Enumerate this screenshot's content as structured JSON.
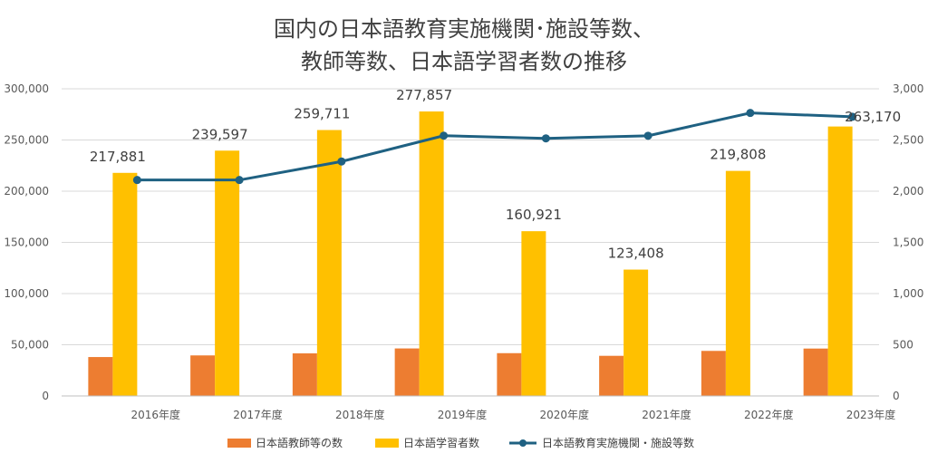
{
  "chart_data": {
    "type": "bar",
    "title_lines": [
      "国内の日本語教育実施機関･施設等数、",
      "教師等数、日本語学習者数の推移"
    ],
    "categories": [
      "2016年度",
      "2017年度",
      "2018年度",
      "2019年度",
      "2020年度",
      "2021年度",
      "2022年度",
      "2023年度"
    ],
    "y_left": {
      "min": 0,
      "max": 300000,
      "ticks": [
        "0",
        "50,000",
        "100,000",
        "150,000",
        "200,000",
        "250,000",
        "300,000"
      ]
    },
    "y_right": {
      "min": 0,
      "max": 3000,
      "ticks": [
        "0",
        "500",
        "1,000",
        "1,500",
        "2,000",
        "2,500",
        "3,000"
      ]
    },
    "series": [
      {
        "name": "日本語教師等の数",
        "type": "bar",
        "axis": "left",
        "color": "#ED7D31",
        "values": [
          38000,
          39600,
          41600,
          46400,
          41800,
          39200,
          44000,
          46300
        ]
      },
      {
        "name": "日本語学習者数",
        "type": "bar",
        "axis": "left",
        "color": "#FFC000",
        "values": [
          217881,
          239597,
          259711,
          277857,
          160921,
          123408,
          219808,
          263170
        ],
        "labels": [
          "217,881",
          "239,597",
          "259,711",
          "277,857",
          "160,921",
          "123,408",
          "219,808",
          "263,170"
        ]
      },
      {
        "name": "日本語教育実施機関・施設等数",
        "type": "line",
        "axis": "right",
        "color": "#1F6182",
        "values": [
          2109,
          2109,
          2290,
          2542,
          2516,
          2541,
          2764,
          2727
        ]
      }
    ],
    "legend_position": "bottom",
    "grid": true
  }
}
